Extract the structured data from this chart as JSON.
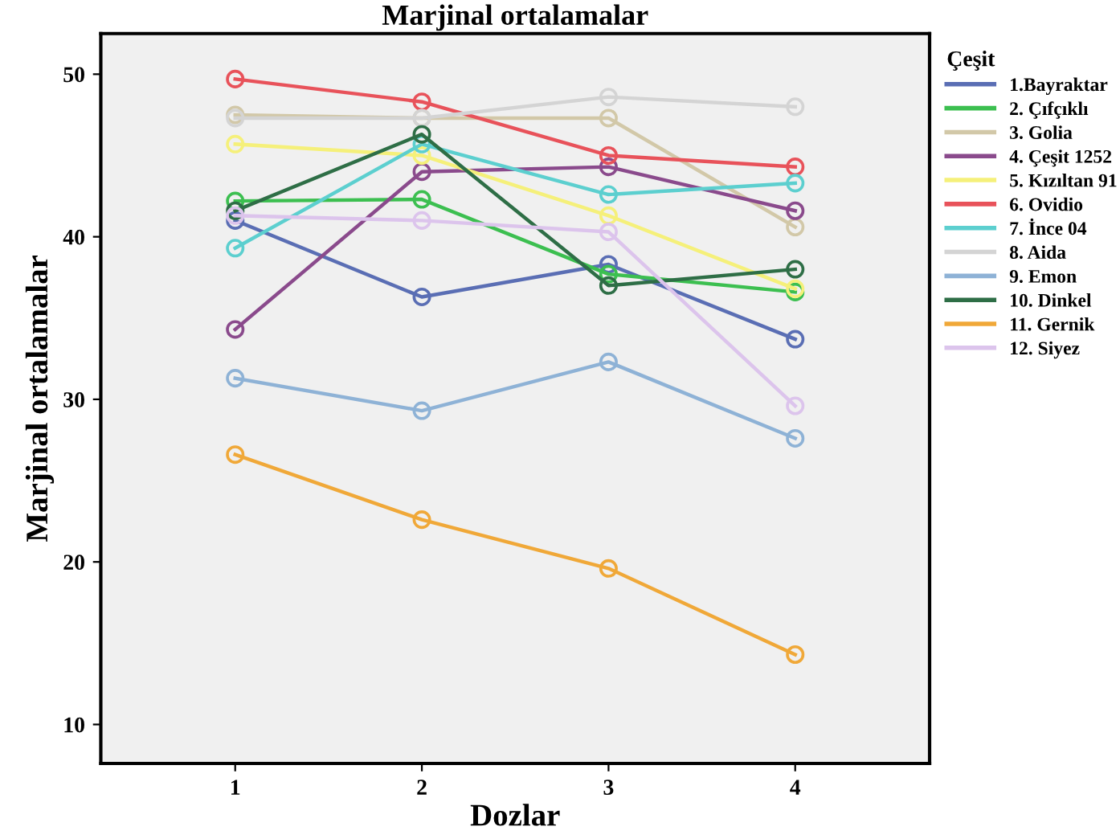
{
  "chart_data": {
    "type": "line",
    "title": "Marjinal ortalamalar",
    "xlabel": "Dozlar",
    "ylabel": "Marjinal ortalamalar",
    "legend_title": "Çeşit",
    "legend": "right",
    "marker": "circle",
    "line_style": "solid",
    "grid": false,
    "x": [
      1,
      2,
      3,
      4
    ],
    "xlim": [
      0.28,
      4.72
    ],
    "xticks": [
      1,
      2,
      3,
      4
    ],
    "ylim": [
      7.6,
      52.5
    ],
    "yticks": [
      10,
      20,
      30,
      40,
      50
    ],
    "series": [
      {
        "name": "1.Bayraktar",
        "color": "#5a6eb4",
        "values": [
          41.0,
          36.3,
          38.3,
          33.7
        ]
      },
      {
        "name": "2. Çıfçıklı",
        "color": "#3cbf50",
        "values": [
          42.2,
          42.3,
          37.7,
          36.6
        ]
      },
      {
        "name": "3. Golia",
        "color": "#d2c8a8",
        "values": [
          47.5,
          47.3,
          47.3,
          40.6
        ]
      },
      {
        "name": "4. Çeşit 1252",
        "color": "#8a4a8c",
        "values": [
          34.3,
          44.0,
          44.3,
          41.6
        ]
      },
      {
        "name": "5. Kızıltan 91",
        "color": "#f5f07a",
        "values": [
          45.7,
          45.0,
          41.3,
          36.8
        ]
      },
      {
        "name": "6. Ovidio",
        "color": "#e8525a",
        "values": [
          49.7,
          48.3,
          45.0,
          44.3
        ]
      },
      {
        "name": "7. İnce 04",
        "color": "#5ccfcf",
        "values": [
          39.3,
          45.7,
          42.6,
          43.3
        ]
      },
      {
        "name": "8. Aida",
        "color": "#d4d4d4",
        "values": [
          47.3,
          47.3,
          48.6,
          48.0
        ]
      },
      {
        "name": "9. Emon",
        "color": "#8eb2d6",
        "values": [
          31.3,
          29.3,
          32.3,
          27.6
        ]
      },
      {
        "name": "10. Dinkel",
        "color": "#2e6e46",
        "values": [
          41.6,
          46.3,
          37.0,
          38.0
        ]
      },
      {
        "name": "11. Gernik",
        "color": "#f0a838",
        "values": [
          26.6,
          22.6,
          19.6,
          14.3
        ]
      },
      {
        "name": "12. Siyez",
        "color": "#dcc4ec",
        "values": [
          41.3,
          41.0,
          40.3,
          29.6
        ]
      }
    ]
  }
}
